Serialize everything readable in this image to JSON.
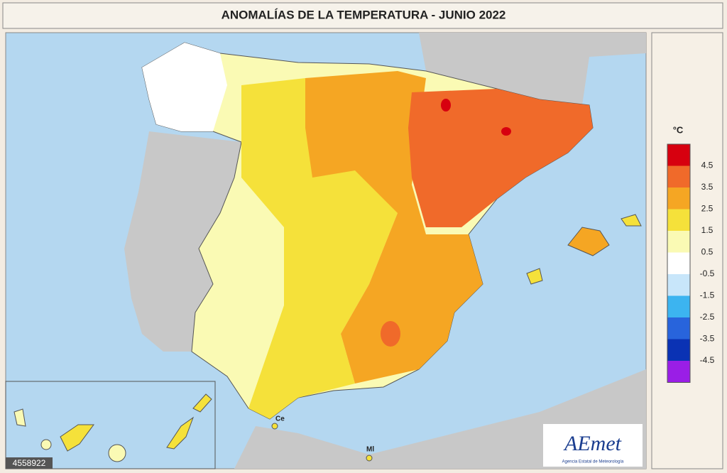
{
  "header": {
    "title": "ANOMALÍAS DE LA TEMPERATURA - JUNIO 2022"
  },
  "legend": {
    "unit": "°C",
    "colors": [
      "#d7000f",
      "#f06a2a",
      "#f5a623",
      "#f5e13a",
      "#fafab4",
      "#ffffff",
      "#c8e6fa",
      "#3cb4f0",
      "#2864dc",
      "#0a32b4",
      "#9a1ee6"
    ],
    "labels": [
      "4.5",
      "3.5",
      "2.5",
      "1.5",
      "0.5",
      "-0.5",
      "-1.5",
      "-2.5",
      "-3.5",
      "-4.5"
    ]
  },
  "map_labels": {
    "ceuta": "Ce",
    "melilla": "Ml"
  },
  "logo": {
    "name": "AEmet",
    "subtitle": "Agencia Estatal de Meteorología"
  },
  "watermark": "4558922"
}
